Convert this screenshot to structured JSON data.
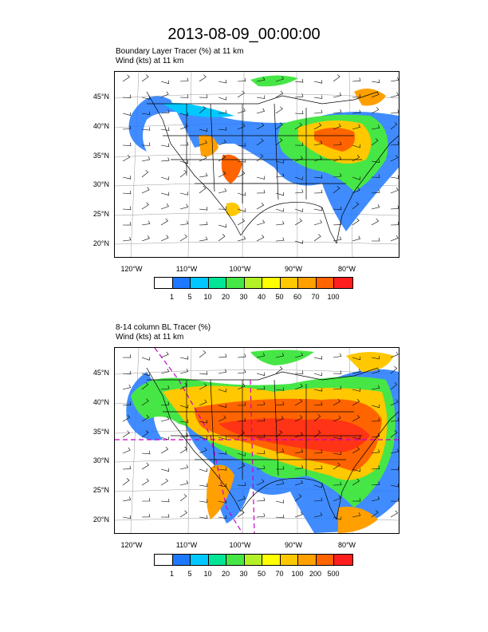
{
  "title": "2013-08-09_00:00:00",
  "panels": [
    {
      "label_line1": "Boundary Layer Tracer   (%)     at   11 km",
      "label_line2": "Wind   (kts)     at   11 km",
      "colorbar_labels": [
        "1",
        "5",
        "10",
        "20",
        "30",
        "40",
        "50",
        "60",
        "70",
        "100"
      ]
    },
    {
      "label_line1": "8-14 column BL Tracer   (%)",
      "label_line2": "Wind   (kts)     at   11 km",
      "colorbar_labels": [
        "1",
        "5",
        "10",
        "20",
        "30",
        "50",
        "70",
        "100",
        "200",
        "500"
      ]
    }
  ],
  "lat_labels": [
    "45°N",
    "40°N",
    "35°N",
    "30°N",
    "25°N",
    "20°N"
  ],
  "lon_labels": [
    "120°W",
    "110°W",
    "100°W",
    "90°W",
    "80°W"
  ],
  "colorbar_colors": [
    "#ffffff",
    "#1e78ff",
    "#00c8ff",
    "#00e696",
    "#46e646",
    "#b4f028",
    "#ffff00",
    "#ffc800",
    "#ffa000",
    "#ff6400",
    "#ff1e1e"
  ]
}
